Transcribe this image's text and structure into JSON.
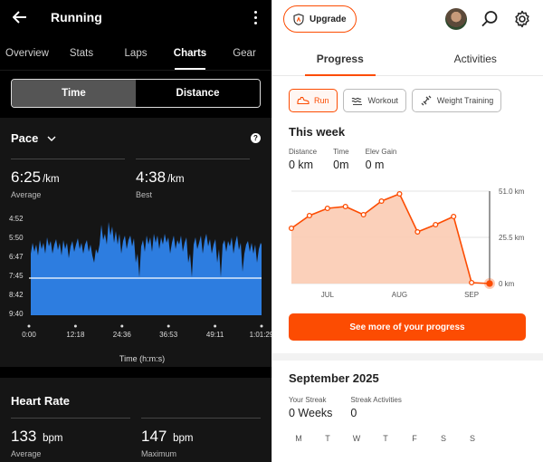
{
  "left": {
    "title": "Running",
    "tabs": [
      "Overview",
      "Stats",
      "Laps",
      "Charts",
      "Gear"
    ],
    "active_tab": "Charts",
    "toggle": {
      "time": "Time",
      "distance": "Distance",
      "selected": "Time"
    },
    "pace": {
      "title": "Pace",
      "average_value": "6:25",
      "average_unit": "/km",
      "average_label": "Average",
      "best_value": "4:38",
      "best_unit": "/km",
      "best_label": "Best"
    },
    "pace_chart": {
      "y_ticks": [
        "4:52",
        "5:50",
        "6:47",
        "7:45",
        "8:42",
        "9:40"
      ],
      "x_ticks": [
        "0:00",
        "12:18",
        "24:36",
        "36:53",
        "49:11",
        "1:01:29"
      ],
      "x_label": "Time (h:m:s)"
    },
    "heart_rate": {
      "title": "Heart Rate",
      "average_value": "133",
      "average_unit": "bpm",
      "average_label": "Average",
      "max_value": "147",
      "max_unit": "bpm",
      "max_label": "Maximum"
    }
  },
  "right": {
    "upgrade_label": "Upgrade",
    "tabs": [
      "Progress",
      "Activities"
    ],
    "active_tab": "Progress",
    "chips": [
      "Run",
      "Workout",
      "Weight Training"
    ],
    "active_chip": "Run",
    "week": {
      "title": "This week",
      "stats": [
        {
          "label": "Distance",
          "value": "0 km"
        },
        {
          "label": "Time",
          "value": "0m"
        },
        {
          "label": "Elev Gain",
          "value": "0 m"
        }
      ]
    },
    "cta_label": "See more of your progress",
    "month": {
      "title": "September 2025",
      "stats": [
        {
          "label": "Your Streak",
          "value": "0 Weeks"
        },
        {
          "label": "Streak Activities",
          "value": "0"
        }
      ],
      "days": [
        "M",
        "T",
        "W",
        "T",
        "F",
        "S",
        "S"
      ]
    },
    "accent": "#fc4c02"
  },
  "chart_data": [
    {
      "type": "area",
      "title": "",
      "xlabel": "",
      "ylabel": "",
      "y_ticks": [
        "0 km",
        "25.5 km",
        "51.0 km"
      ],
      "ylim": [
        0,
        51.0
      ],
      "x_ticks": [
        "JUL",
        "AUG",
        "SEP"
      ],
      "values": [
        30.5,
        37.5,
        41.5,
        42.5,
        38.0,
        45.5,
        49.5,
        28.5,
        32.5,
        37.0,
        0.5,
        0
      ],
      "grid": true
    }
  ]
}
